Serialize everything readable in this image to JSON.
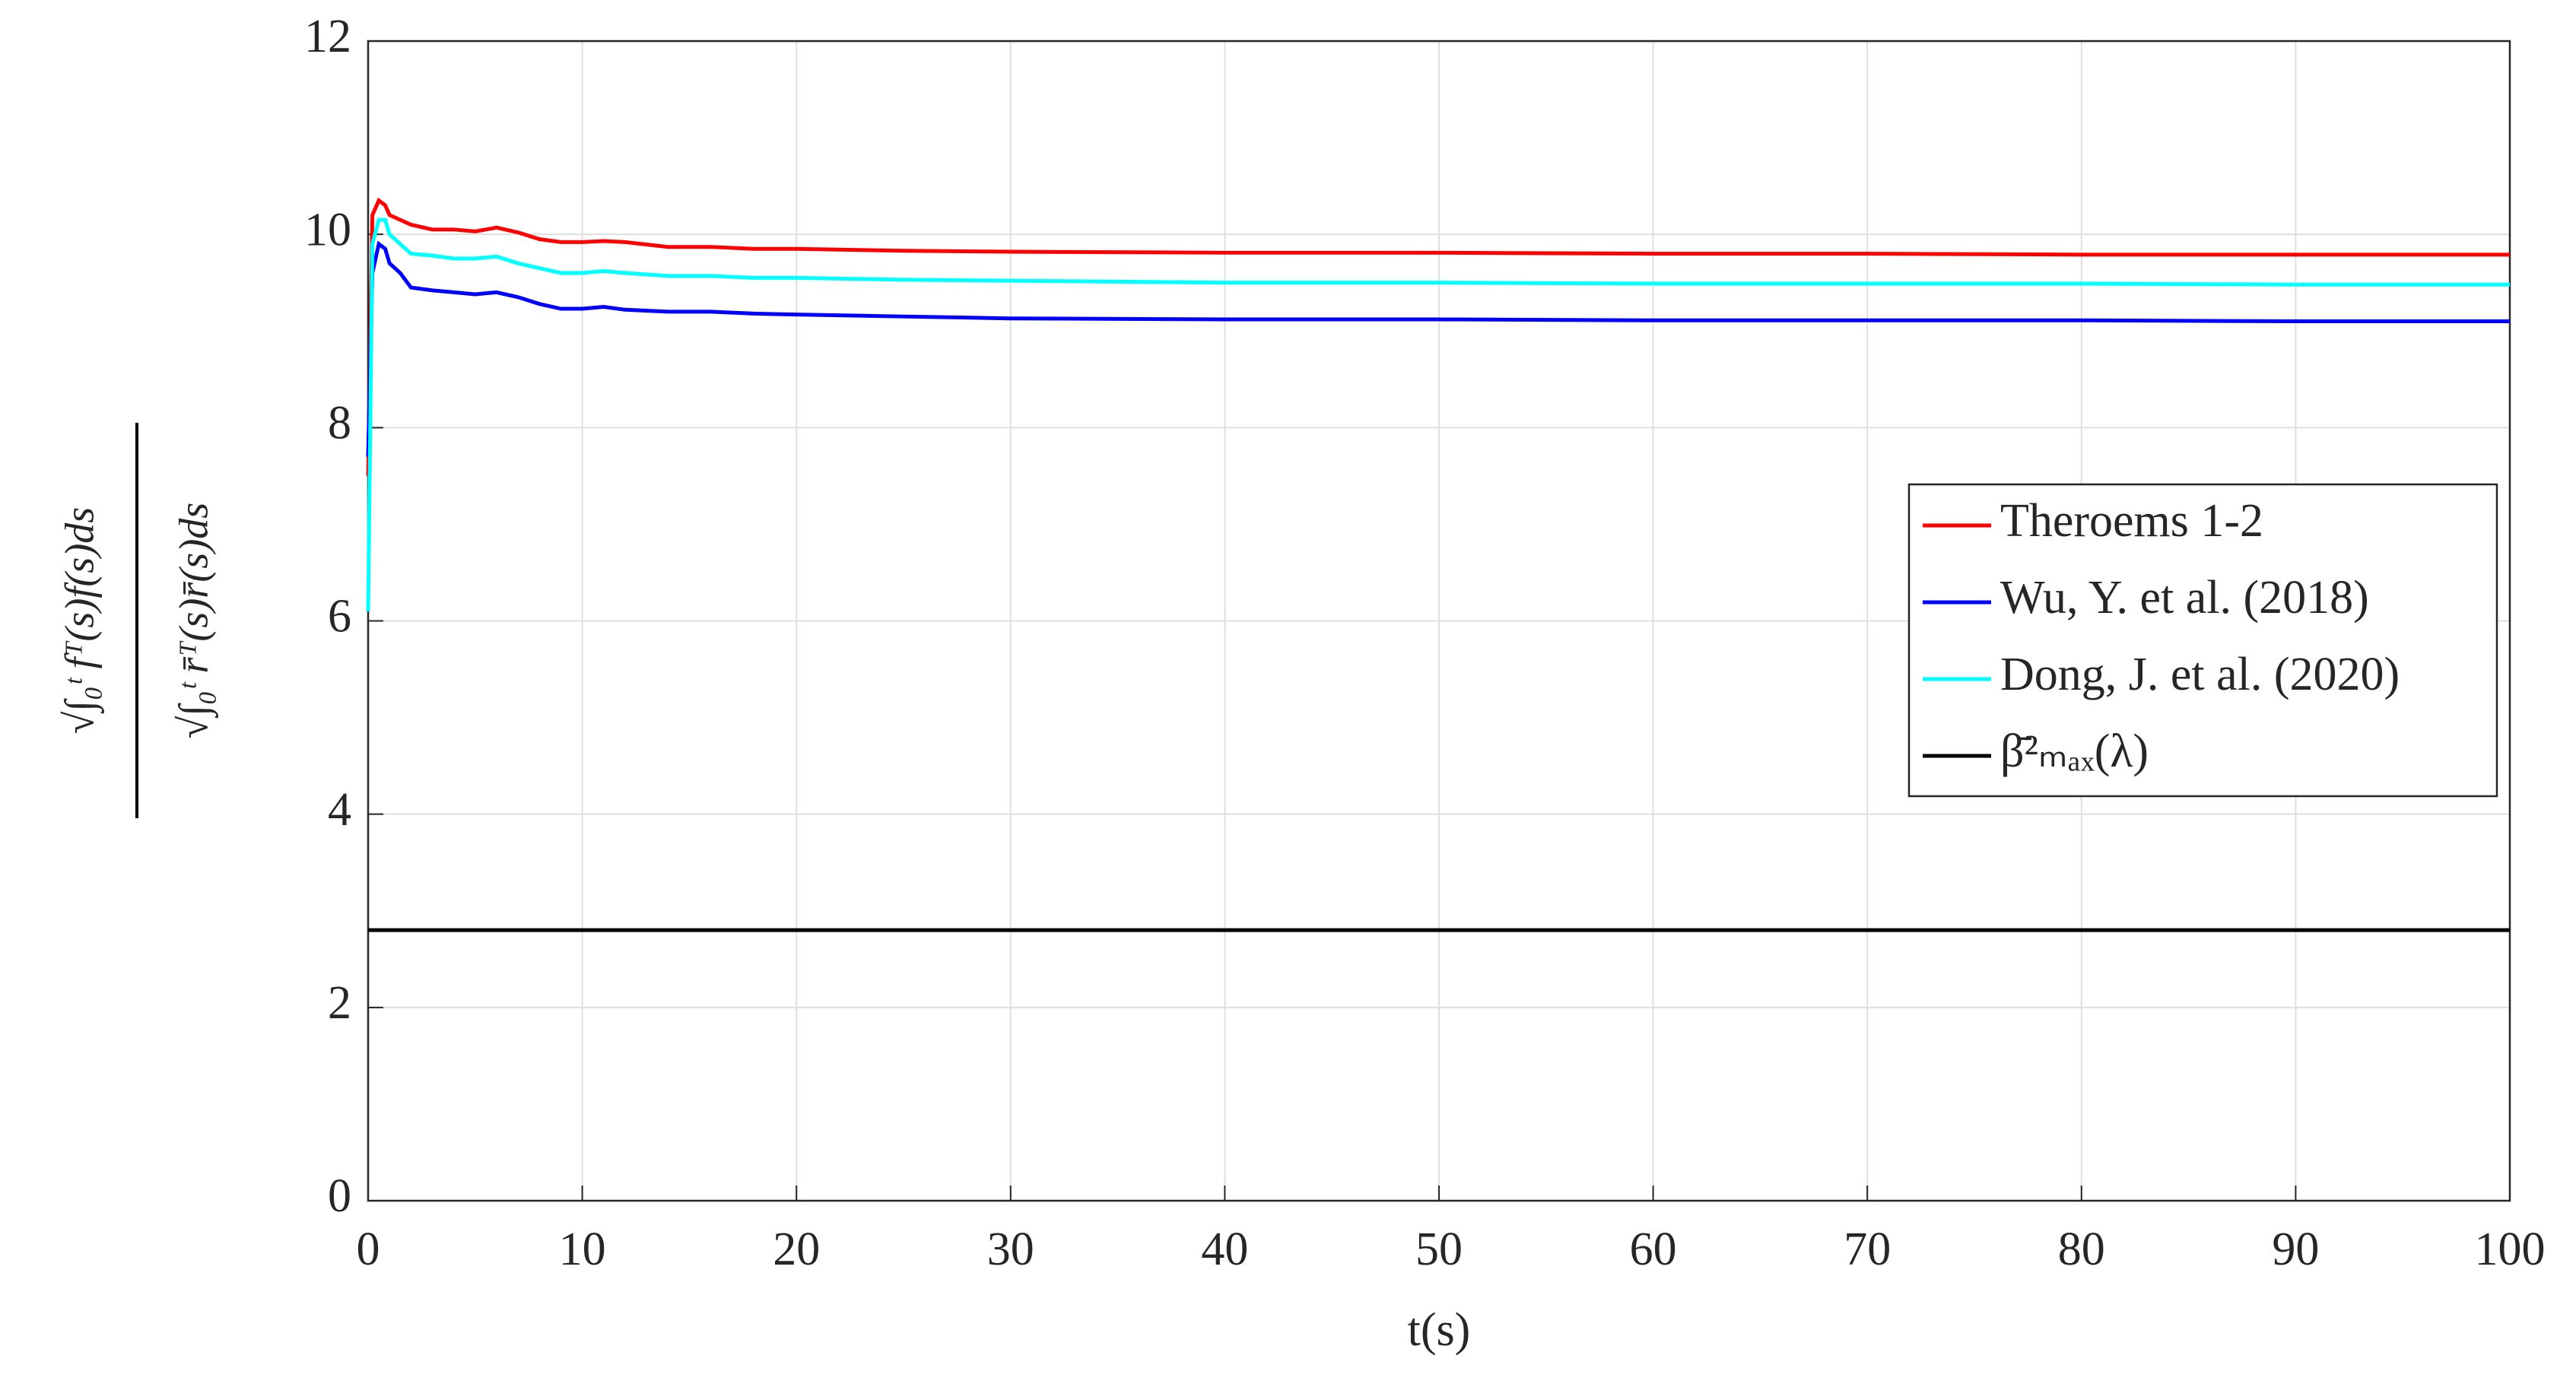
{
  "chart_data": {
    "type": "line",
    "x_label": "t(s)",
    "y_label": [
      "√∫₀ᵗ fᵀ(s)f(s)ds",
      "√∫₀ᵗ r̄ᵀ(s)r̄(s)ds"
    ],
    "x": [
      0,
      0.2,
      0.5,
      0.8,
      1,
      1.5,
      2,
      3,
      4,
      5,
      6,
      7,
      8,
      9,
      10,
      11,
      12,
      14,
      16,
      18,
      20,
      25,
      30,
      40,
      50,
      60,
      70,
      80,
      90,
      100
    ],
    "series": [
      {
        "name": "Theroems 1-2",
        "color": "#ff0000",
        "values": [
          7.5,
          10.2,
          10.35,
          10.3,
          10.2,
          10.15,
          10.1,
          10.05,
          10.05,
          10.03,
          10.07,
          10.02,
          9.95,
          9.92,
          9.92,
          9.93,
          9.92,
          9.87,
          9.87,
          9.85,
          9.85,
          9.83,
          9.82,
          9.81,
          9.81,
          9.8,
          9.8,
          9.79,
          9.79,
          9.79
        ]
      },
      {
        "name": "Wu, Y. et al. (2018)",
        "color": "#0000ff",
        "values": [
          7.7,
          9.6,
          9.9,
          9.85,
          9.7,
          9.6,
          9.45,
          9.42,
          9.4,
          9.38,
          9.4,
          9.35,
          9.28,
          9.23,
          9.23,
          9.25,
          9.22,
          9.2,
          9.2,
          9.18,
          9.17,
          9.15,
          9.13,
          9.12,
          9.12,
          9.11,
          9.11,
          9.11,
          9.1,
          9.1
        ]
      },
      {
        "name": "Dong, J. et al. (2020)",
        "color": "#00ffff",
        "values": [
          6.1,
          9.9,
          10.15,
          10.15,
          10.0,
          9.9,
          9.8,
          9.78,
          9.75,
          9.75,
          9.77,
          9.7,
          9.65,
          9.6,
          9.6,
          9.62,
          9.6,
          9.57,
          9.57,
          9.55,
          9.55,
          9.53,
          9.52,
          9.5,
          9.5,
          9.49,
          9.49,
          9.49,
          9.48,
          9.48
        ]
      },
      {
        "name": "β̄²ₘₐₓ(λ)",
        "color": "#000000",
        "values": [
          2.8,
          2.8,
          2.8,
          2.8,
          2.8,
          2.8,
          2.8,
          2.8,
          2.8,
          2.8,
          2.8,
          2.8,
          2.8,
          2.8,
          2.8,
          2.8,
          2.8,
          2.8,
          2.8,
          2.8,
          2.8,
          2.8,
          2.8,
          2.8,
          2.8,
          2.8,
          2.8,
          2.8,
          2.8,
          2.8
        ]
      }
    ],
    "xlim": [
      0,
      100
    ],
    "xticks": [
      0,
      10,
      20,
      30,
      40,
      50,
      60,
      70,
      80,
      90,
      100
    ],
    "ylim": [
      0,
      12
    ],
    "yticks": [
      0,
      2,
      4,
      6,
      8,
      10,
      12
    ],
    "grid": true,
    "legend": "east"
  }
}
